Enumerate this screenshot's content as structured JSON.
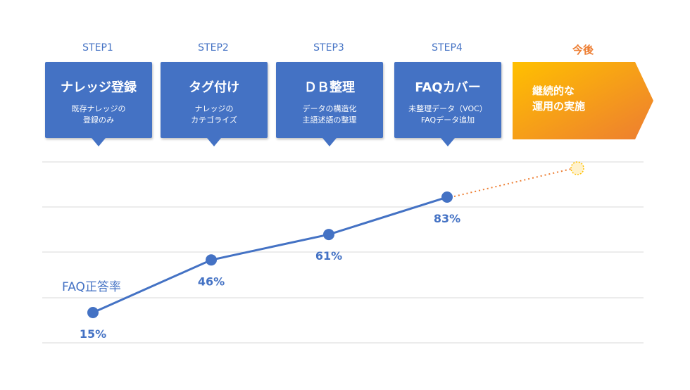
{
  "steps": [
    {
      "label": "STEP1",
      "title": "ナレッジ登録",
      "desc": "既存ナレッジの\n登録のみ"
    },
    {
      "label": "STEP2",
      "title": "タグ付け",
      "desc": "ナレッジの\nカテゴライズ"
    },
    {
      "label": "STEP3",
      "title": "ＤＢ整理",
      "desc": "データの構造化\n主語述語の整理"
    },
    {
      "label": "STEP4",
      "title": "FAQカバー",
      "desc": "未整理データ（VOC）\nFAQデータ追加"
    }
  ],
  "future": {
    "label": "今後",
    "text": "継続的な\n運用の実施"
  },
  "colors": {
    "primary": "#4472c4",
    "accent": "#ed7d31",
    "future_fill_top": "#ffc000",
    "future_fill_bottom": "#ed7d31"
  },
  "chart_data": {
    "type": "line",
    "series_label": "FAQ正答率",
    "x": [
      "STEP1",
      "STEP2",
      "STEP3",
      "STEP4"
    ],
    "values": [
      15,
      46,
      61,
      83
    ],
    "value_labels": [
      "15%",
      "46%",
      "61%",
      "83%"
    ],
    "projection": {
      "values": [
        83,
        100
      ]
    },
    "grid": true,
    "ylim": [
      0,
      100
    ]
  }
}
